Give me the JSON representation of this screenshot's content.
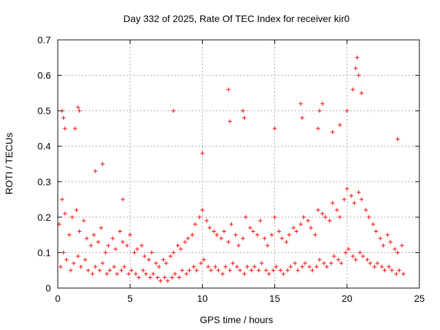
{
  "chart_data": {
    "type": "scatter",
    "title": "Day 332 of 2025, Rate Of TEC Index for receiver kir0",
    "xlabel": "GPS time / hours",
    "ylabel": "ROTI / TECUs",
    "xlim": [
      0,
      25
    ],
    "ylim": [
      0,
      0.7
    ],
    "xticks": [
      0,
      5,
      10,
      15,
      20,
      25
    ],
    "yticks": [
      0,
      0.1,
      0.2,
      0.3,
      0.4,
      0.5,
      0.6,
      0.7
    ],
    "xtick_labels": [
      "0",
      "5",
      "10",
      "15",
      "20",
      "25"
    ],
    "ytick_labels": [
      "0",
      "0.1",
      "0.2",
      "0.3",
      "0.4",
      "0.5",
      "0.6",
      "0.7"
    ],
    "grid": true,
    "marker": "+",
    "color": "#ff0000",
    "series": [
      {
        "x": [
          0.1,
          0.3,
          0.5,
          0.8,
          1.0,
          1.3,
          1.5,
          1.8,
          2.0,
          2.3,
          2.5,
          2.8,
          3.0,
          3.3,
          3.5,
          3.8,
          4.0,
          4.3,
          4.5,
          4.8,
          5.0,
          5.3,
          5.5,
          5.8,
          6.0,
          6.3,
          6.5,
          6.8,
          7.0,
          7.3,
          7.5,
          7.8,
          8.0,
          8.3,
          8.5,
          8.8,
          9.0,
          9.3,
          9.5,
          9.8,
          10.0,
          10.3,
          10.5,
          10.8,
          11.0,
          11.3,
          11.5,
          11.8,
          12.0,
          12.3,
          12.5,
          12.8,
          13.0,
          13.3,
          13.5,
          13.8,
          14.0,
          14.3,
          14.5,
          14.8,
          15.0,
          15.3,
          15.5,
          15.8,
          16.0,
          16.3,
          16.5,
          16.8,
          17.0,
          17.3,
          17.5,
          17.8,
          18.0,
          18.3,
          18.5,
          18.8,
          19.0,
          19.3,
          19.5,
          19.8,
          20.0,
          20.3,
          20.5,
          20.8,
          21.0,
          21.3,
          21.5,
          21.8,
          22.0,
          22.3,
          22.5,
          22.8,
          23.0,
          23.3,
          23.5,
          23.8,
          0.2,
          0.4,
          0.6,
          0.9,
          1.1,
          1.4,
          1.6,
          1.9,
          2.1,
          2.4,
          2.6,
          2.9,
          3.1,
          3.4,
          3.6,
          3.9,
          4.1,
          4.4,
          4.6,
          4.9,
          5.1,
          5.4,
          5.6,
          5.9,
          6.1,
          6.4,
          6.6,
          6.9,
          7.1,
          7.4,
          7.6,
          7.9,
          8.1,
          8.4,
          8.6,
          8.9,
          9.1,
          9.4,
          9.6,
          9.9,
          10.1,
          10.4,
          10.6,
          10.9,
          11.1,
          11.4,
          11.6,
          11.9,
          12.1,
          12.4,
          12.6,
          12.9,
          13.1,
          13.4,
          13.6,
          13.9,
          14.1,
          14.4,
          14.6,
          14.9,
          15.1,
          15.4,
          15.6,
          15.9,
          16.1,
          16.4,
          16.6,
          16.9,
          17.1,
          17.4,
          17.6,
          17.9,
          18.1,
          18.4,
          18.6,
          18.9,
          19.1,
          19.4,
          19.6,
          19.9,
          20.1,
          20.4,
          20.6,
          20.9,
          21.1,
          21.4,
          21.6,
          21.9,
          22.1,
          22.4,
          22.6,
          22.9,
          23.1,
          23.4,
          23.6,
          23.9,
          0.3,
          0.4,
          0.5,
          1.4,
          1.5,
          1.2,
          2.6,
          3.1,
          4.5,
          8.0,
          10.0,
          11.8,
          11.9,
          12.8,
          12.9,
          15.0,
          16.8,
          16.9,
          18.0,
          18.1,
          18.3,
          19.0,
          19.5,
          20.0,
          20.4,
          20.6,
          20.7,
          20.8,
          21.0,
          23.5
        ],
        "y": [
          0.18,
          0.25,
          0.21,
          0.15,
          0.2,
          0.22,
          0.16,
          0.19,
          0.14,
          0.12,
          0.15,
          0.13,
          0.17,
          0.1,
          0.12,
          0.14,
          0.11,
          0.16,
          0.13,
          0.12,
          0.15,
          0.1,
          0.11,
          0.12,
          0.09,
          0.08,
          0.1,
          0.07,
          0.06,
          0.08,
          0.07,
          0.09,
          0.1,
          0.12,
          0.11,
          0.13,
          0.14,
          0.15,
          0.18,
          0.2,
          0.22,
          0.19,
          0.17,
          0.16,
          0.15,
          0.14,
          0.16,
          0.13,
          0.18,
          0.15,
          0.12,
          0.14,
          0.2,
          0.17,
          0.16,
          0.15,
          0.19,
          0.14,
          0.12,
          0.15,
          0.2,
          0.16,
          0.14,
          0.13,
          0.15,
          0.17,
          0.16,
          0.18,
          0.2,
          0.19,
          0.17,
          0.15,
          0.22,
          0.21,
          0.2,
          0.19,
          0.24,
          0.22,
          0.2,
          0.25,
          0.28,
          0.26,
          0.24,
          0.27,
          0.25,
          0.22,
          0.2,
          0.18,
          0.16,
          0.14,
          0.12,
          0.15,
          0.13,
          0.11,
          0.1,
          0.12,
          0.06,
          0.1,
          0.08,
          0.05,
          0.07,
          0.09,
          0.06,
          0.08,
          0.05,
          0.04,
          0.06,
          0.05,
          0.07,
          0.04,
          0.05,
          0.06,
          0.04,
          0.05,
          0.06,
          0.04,
          0.05,
          0.04,
          0.03,
          0.05,
          0.04,
          0.03,
          0.04,
          0.03,
          0.02,
          0.03,
          0.02,
          0.03,
          0.04,
          0.03,
          0.05,
          0.04,
          0.05,
          0.06,
          0.05,
          0.07,
          0.08,
          0.06,
          0.05,
          0.06,
          0.05,
          0.04,
          0.06,
          0.05,
          0.07,
          0.06,
          0.05,
          0.04,
          0.06,
          0.05,
          0.06,
          0.05,
          0.07,
          0.05,
          0.04,
          0.05,
          0.06,
          0.05,
          0.04,
          0.05,
          0.06,
          0.07,
          0.05,
          0.06,
          0.07,
          0.06,
          0.05,
          0.06,
          0.08,
          0.07,
          0.06,
          0.07,
          0.09,
          0.08,
          0.07,
          0.1,
          0.11,
          0.09,
          0.08,
          0.1,
          0.09,
          0.08,
          0.07,
          0.06,
          0.07,
          0.06,
          0.05,
          0.06,
          0.05,
          0.04,
          0.05,
          0.04,
          0.5,
          0.48,
          0.45,
          0.51,
          0.5,
          0.45,
          0.33,
          0.35,
          0.25,
          0.5,
          0.38,
          0.56,
          0.47,
          0.5,
          0.48,
          0.45,
          0.52,
          0.48,
          0.45,
          0.5,
          0.52,
          0.44,
          0.46,
          0.5,
          0.56,
          0.62,
          0.65,
          0.6,
          0.55,
          0.42
        ]
      }
    ]
  }
}
